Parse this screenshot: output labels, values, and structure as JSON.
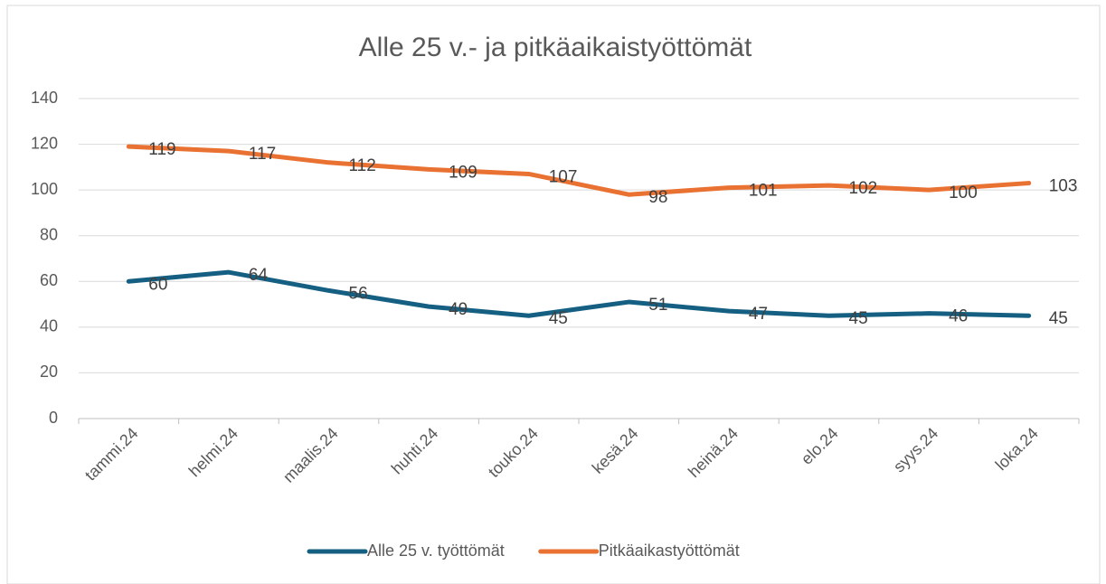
{
  "chart_data": {
    "type": "line",
    "title": "Alle 25 v.- ja pitkäaikaistyöttömät",
    "categories": [
      "tammi.24",
      "helmi.24",
      "maalis.24",
      "huhti.24",
      "touko.24",
      "kesä.24",
      "heinä.24",
      "elo.24",
      "syys.24",
      "loka.24"
    ],
    "series": [
      {
        "name": "Alle 25 v. työttömät",
        "color": "#156082",
        "values": [
          60,
          64,
          56,
          49,
          45,
          51,
          47,
          45,
          46,
          45
        ]
      },
      {
        "name": "Pitkäaikastyöttömät",
        "color": "#e97132",
        "values": [
          119,
          117,
          112,
          109,
          107,
          98,
          101,
          102,
          100,
          103
        ]
      }
    ],
    "ylim": [
      0,
      140
    ],
    "yticks": [
      0,
      20,
      40,
      60,
      80,
      100,
      120,
      140
    ],
    "grid": true,
    "legend": "bottom"
  }
}
